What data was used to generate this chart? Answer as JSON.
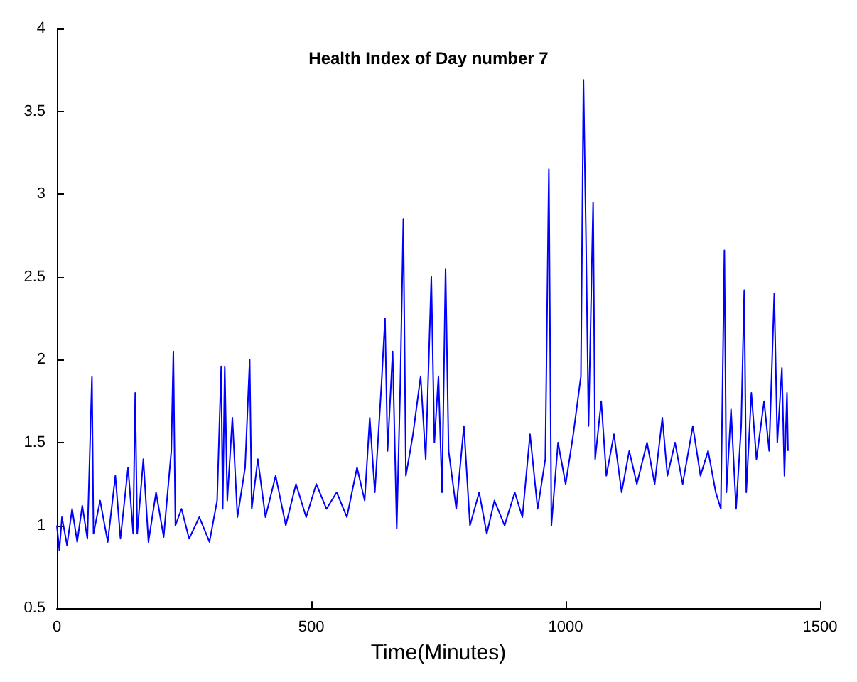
{
  "chart_data": {
    "type": "line",
    "title": "Health Index of Day number 7",
    "xlabel": "Time(Minutes)",
    "xlim": [
      0,
      1500
    ],
    "xticks": [
      0,
      500,
      1000,
      1500
    ],
    "ylim": [
      0.5,
      4
    ],
    "yticks": [
      0.5,
      1,
      1.5,
      2,
      2.5,
      3,
      3.5,
      4
    ],
    "grid": false,
    "marker": "none",
    "line_style": "solid",
    "x": [
      0,
      5,
      10,
      20,
      30,
      40,
      50,
      60,
      69,
      72,
      85,
      100,
      115,
      125,
      140,
      150,
      154,
      158,
      170,
      180,
      195,
      210,
      225,
      229,
      233,
      245,
      260,
      280,
      300,
      315,
      323,
      326,
      330,
      335,
      345,
      355,
      370,
      379,
      383,
      395,
      410,
      430,
      450,
      470,
      490,
      510,
      530,
      550,
      570,
      590,
      605,
      615,
      625,
      638,
      645,
      650,
      660,
      668,
      675,
      681,
      686,
      700,
      715,
      725,
      736,
      742,
      750,
      757,
      764,
      770,
      785,
      800,
      812,
      830,
      845,
      860,
      880,
      900,
      915,
      930,
      945,
      960,
      967,
      972,
      985,
      1000,
      1015,
      1030,
      1035,
      1040,
      1045,
      1054,
      1058,
      1070,
      1080,
      1095,
      1110,
      1125,
      1140,
      1160,
      1175,
      1190,
      1200,
      1215,
      1230,
      1250,
      1265,
      1280,
      1295,
      1305,
      1312,
      1316,
      1325,
      1335,
      1345,
      1351,
      1355,
      1365,
      1375,
      1390,
      1400,
      1410,
      1416,
      1425,
      1430,
      1435,
      1437
    ],
    "series": [
      {
        "color": "#0000ff",
        "values": [
          1.0,
          0.85,
          1.05,
          0.88,
          1.1,
          0.9,
          1.12,
          0.92,
          1.9,
          0.95,
          1.15,
          0.9,
          1.3,
          0.92,
          1.35,
          0.95,
          1.8,
          0.95,
          1.4,
          0.9,
          1.2,
          0.93,
          1.45,
          2.05,
          1.0,
          1.1,
          0.92,
          1.05,
          0.9,
          1.15,
          1.96,
          1.1,
          1.96,
          1.15,
          1.65,
          1.05,
          1.35,
          2.0,
          1.1,
          1.4,
          1.05,
          1.3,
          1.0,
          1.25,
          1.05,
          1.25,
          1.1,
          1.2,
          1.05,
          1.35,
          1.15,
          1.65,
          1.2,
          1.85,
          2.25,
          1.45,
          2.05,
          0.98,
          1.85,
          2.85,
          1.3,
          1.55,
          1.9,
          1.4,
          2.5,
          1.5,
          1.9,
          1.2,
          2.55,
          1.45,
          1.1,
          1.6,
          1.0,
          1.2,
          0.95,
          1.15,
          1.0,
          1.2,
          1.05,
          1.55,
          1.1,
          1.4,
          3.15,
          1.0,
          1.5,
          1.25,
          1.55,
          1.9,
          3.69,
          2.74,
          1.6,
          2.95,
          1.4,
          1.75,
          1.3,
          1.55,
          1.2,
          1.45,
          1.25,
          1.5,
          1.25,
          1.65,
          1.3,
          1.5,
          1.25,
          1.6,
          1.3,
          1.45,
          1.2,
          1.1,
          2.66,
          1.2,
          1.7,
          1.1,
          1.6,
          2.42,
          1.2,
          1.8,
          1.4,
          1.75,
          1.45,
          2.4,
          1.5,
          1.95,
          1.3,
          1.8,
          1.45
        ]
      }
    ]
  }
}
